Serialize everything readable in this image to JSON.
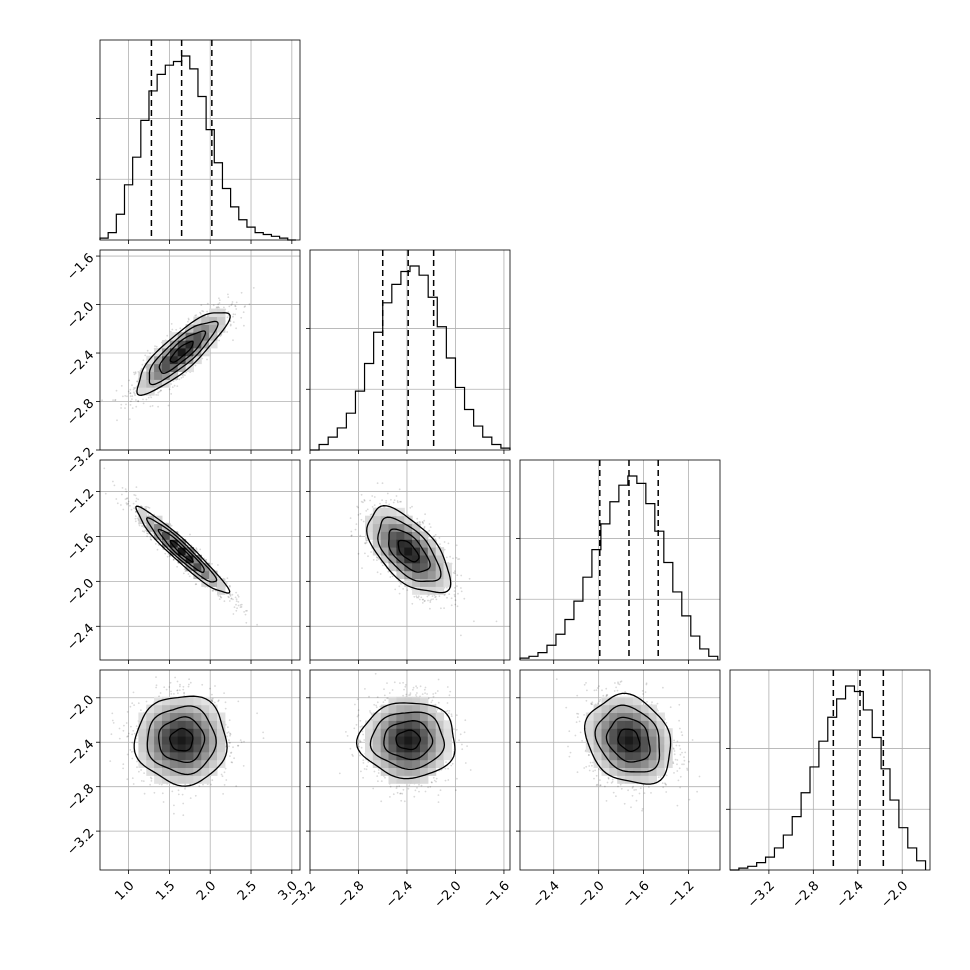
{
  "chart_data": {
    "type": "corner",
    "n_params": 4,
    "grid": true,
    "params": [
      {
        "range": [
          0.65,
          3.1
        ],
        "ticks": [
          1.0,
          1.5,
          2.0,
          2.5,
          3.0
        ],
        "tick_labels": [
          "1.0",
          "1.5",
          "2.0",
          "2.5",
          "3.0"
        ],
        "mean": 1.65,
        "sd": 0.28,
        "quantiles": [
          1.28,
          1.65,
          2.02
        ]
      },
      {
        "range": [
          -3.2,
          -1.55
        ],
        "ticks": [
          -3.2,
          -2.8,
          -2.4,
          -2.0,
          -1.6
        ],
        "tick_labels": [
          "−3.2",
          "−2.8",
          "−2.4",
          "−2.0",
          "−1.6"
        ],
        "mean": -2.39,
        "sd": 0.17,
        "quantiles": [
          -2.6,
          -2.39,
          -2.18
        ]
      },
      {
        "range": [
          -2.7,
          -0.92
        ],
        "ticks": [
          -2.4,
          -2.0,
          -1.6,
          -1.2
        ],
        "tick_labels": [
          "−2.4",
          "−2.0",
          "−1.6",
          "−1.2"
        ],
        "mean": -1.73,
        "sd": 0.19,
        "quantiles": [
          -1.99,
          -1.73,
          -1.47
        ]
      },
      {
        "range": [
          -3.55,
          -1.75
        ],
        "ticks": [
          -3.2,
          -2.8,
          -2.4,
          -2.0
        ],
        "tick_labels": [
          "−3.2",
          "−2.8",
          "−2.4",
          "−2.0"
        ],
        "mean": -2.38,
        "sd": 0.2,
        "quantiles": [
          -2.62,
          -2.38,
          -2.17
        ]
      }
    ],
    "histograms": [
      {
        "param": 0,
        "bin_edges": [
          0.65,
          0.75,
          0.85,
          0.95,
          1.05,
          1.15,
          1.25,
          1.35,
          1.45,
          1.55,
          1.65,
          1.75,
          1.85,
          1.95,
          2.05,
          2.15,
          2.25,
          2.35,
          2.45,
          2.55,
          2.65,
          2.75,
          2.85,
          2.95,
          3.05
        ],
        "counts": [
          0.01,
          0.04,
          0.14,
          0.3,
          0.45,
          0.65,
          0.81,
          0.9,
          0.95,
          0.97,
          1.0,
          0.93,
          0.78,
          0.6,
          0.42,
          0.28,
          0.18,
          0.11,
          0.07,
          0.04,
          0.03,
          0.02,
          0.01,
          0.0
        ]
      },
      {
        "param": 1,
        "bin_edges": [
          -3.2,
          -3.125,
          -3.05,
          -2.975,
          -2.9,
          -2.825,
          -2.75,
          -2.675,
          -2.6,
          -2.525,
          -2.45,
          -2.375,
          -2.3,
          -2.225,
          -2.15,
          -2.075,
          -2.0,
          -1.925,
          -1.85,
          -1.775,
          -1.7,
          -1.625,
          -1.55
        ],
        "counts": [
          0.0,
          0.03,
          0.07,
          0.12,
          0.2,
          0.32,
          0.47,
          0.64,
          0.8,
          0.9,
          0.97,
          1.0,
          0.95,
          0.83,
          0.67,
          0.5,
          0.34,
          0.22,
          0.13,
          0.07,
          0.03,
          0.01
        ]
      },
      {
        "param": 2,
        "bin_edges": [
          -2.7,
          -2.62,
          -2.54,
          -2.46,
          -2.38,
          -2.3,
          -2.22,
          -2.14,
          -2.06,
          -1.98,
          -1.9,
          -1.82,
          -1.74,
          -1.66,
          -1.58,
          -1.5,
          -1.42,
          -1.34,
          -1.26,
          -1.18,
          -1.1,
          -1.02,
          -0.94
        ],
        "counts": [
          0.01,
          0.02,
          0.04,
          0.08,
          0.14,
          0.22,
          0.32,
          0.45,
          0.6,
          0.74,
          0.86,
          0.95,
          1.0,
          0.96,
          0.85,
          0.7,
          0.53,
          0.37,
          0.24,
          0.13,
          0.06,
          0.02
        ]
      },
      {
        "param": 3,
        "bin_edges": [
          -3.55,
          -3.47,
          -3.39,
          -3.31,
          -3.23,
          -3.15,
          -3.07,
          -2.99,
          -2.91,
          -2.83,
          -2.75,
          -2.67,
          -2.59,
          -2.51,
          -2.43,
          -2.35,
          -2.27,
          -2.19,
          -2.11,
          -2.03,
          -1.95,
          -1.87,
          -1.79
        ],
        "counts": [
          0.0,
          0.01,
          0.02,
          0.04,
          0.07,
          0.12,
          0.19,
          0.29,
          0.42,
          0.56,
          0.7,
          0.83,
          0.93,
          1.0,
          0.97,
          0.87,
          0.72,
          0.55,
          0.38,
          0.23,
          0.12,
          0.05
        ]
      }
    ],
    "pairs": [
      {
        "x_param": 0,
        "y_param": 1,
        "correlation": 0.85
      },
      {
        "x_param": 0,
        "y_param": 2,
        "correlation": -0.95
      },
      {
        "x_param": 1,
        "y_param": 2,
        "correlation": -0.6
      },
      {
        "x_param": 0,
        "y_param": 3,
        "correlation": 0.0
      },
      {
        "x_param": 1,
        "y_param": 3,
        "correlation": 0.0
      },
      {
        "x_param": 2,
        "y_param": 3,
        "correlation": -0.2
      }
    ],
    "contour_levels_sigma": [
      0.5,
      1.0,
      1.5,
      2.0
    ]
  }
}
